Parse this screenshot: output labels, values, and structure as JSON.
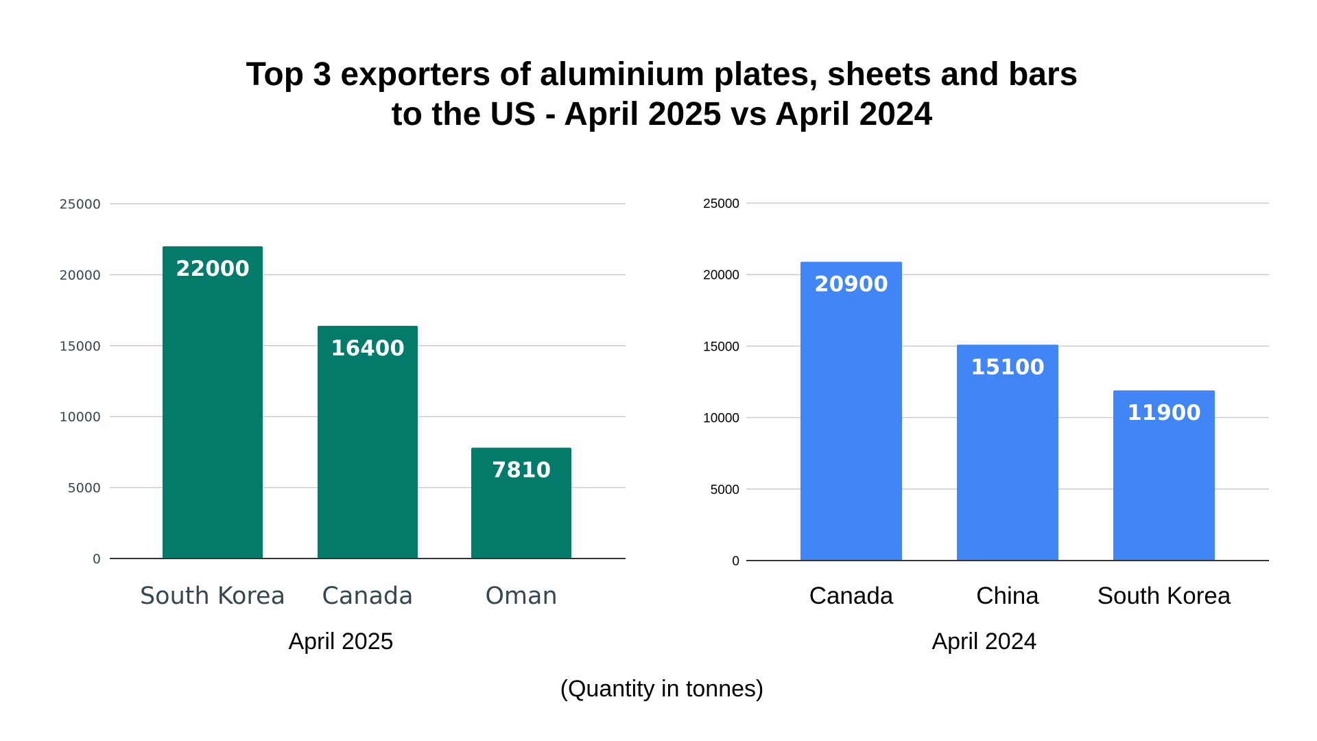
{
  "title_line1": "Top 3 exporters of aluminium plates, sheets and bars",
  "title_line2": "to the US - April 2025 vs April 2024",
  "footnote": "(Quantity in tonnes)",
  "chart_data": [
    {
      "type": "bar",
      "categories": [
        "South Korea",
        "Canada",
        "Oman"
      ],
      "values": [
        22000,
        16400,
        7810
      ],
      "data_labels": [
        "22000",
        "16400",
        "7810"
      ],
      "xlabel": "April 2025",
      "ylabel": "",
      "ylim": [
        0,
        25000
      ],
      "yticks": [
        "0",
        "5000",
        "10000",
        "15000",
        "20000",
        "25000"
      ],
      "grid": true,
      "color": "#047a6a"
    },
    {
      "type": "bar",
      "categories": [
        "Canada",
        "China",
        "South Korea"
      ],
      "values": [
        20900,
        15100,
        11900
      ],
      "data_labels": [
        "20900",
        "15100",
        "11900"
      ],
      "xlabel": "April 2024",
      "ylabel": "",
      "ylim": [
        0,
        25000
      ],
      "yticks": [
        "0",
        "5000",
        "10000",
        "15000",
        "20000",
        "25000"
      ],
      "grid": true,
      "color": "#4285f4"
    }
  ]
}
